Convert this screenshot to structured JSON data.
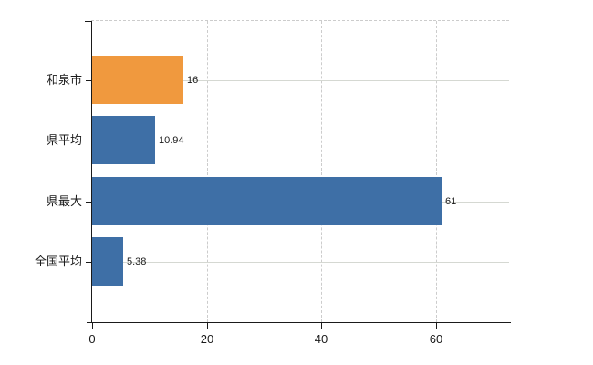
{
  "chart_data": {
    "type": "bar",
    "orientation": "horizontal",
    "title": "",
    "xlabel": "",
    "ylabel": "",
    "categories": [
      "和泉市",
      "県平均",
      "県最大",
      "全国平均"
    ],
    "values": [
      16,
      10.94,
      61,
      5.38
    ],
    "value_labels": [
      "16",
      "10.94",
      "61",
      "5.38"
    ],
    "bar_colors": [
      "#F0993E",
      "#3E6FA6",
      "#3E6FA6",
      "#3E6FA6"
    ],
    "highlight_category": "和泉市",
    "xlim": [
      0,
      72.8
    ],
    "x_ticks": [
      0,
      20,
      40,
      60
    ],
    "grid": {
      "vertical": "dashed",
      "horizontal": "solid",
      "top_border": "dashed"
    },
    "legend": "none",
    "colors": {
      "bar_highlight": "#F0993E",
      "bar_default": "#3E6FA6",
      "axis": "#1a1a1a",
      "text": "#1a1a1a",
      "grid_solid": "#d5d8d2",
      "grid_dashed": "#cccccc",
      "background": "#ffffff"
    }
  }
}
